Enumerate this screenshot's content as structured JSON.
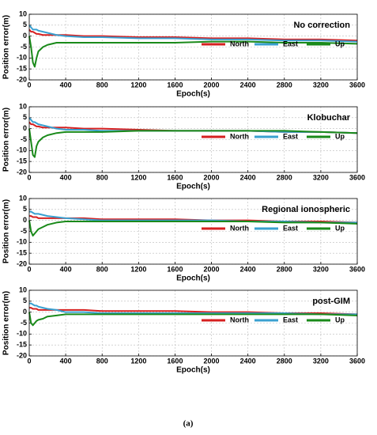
{
  "chart_data": [
    {
      "type": "line",
      "title": "No correction",
      "xlabel": "Epoch(s)",
      "ylabel": "Position error(m)",
      "x": [
        0,
        20,
        40,
        60,
        80,
        100,
        150,
        200,
        300,
        400,
        600,
        800,
        1200,
        1600,
        2000,
        2400,
        2800,
        3200,
        3600
      ],
      "series": [
        {
          "name": "North",
          "color": "#d62020",
          "values": [
            3,
            2,
            2,
            1.5,
            1,
            1,
            0.5,
            0.5,
            0.5,
            0.5,
            0,
            0,
            -0.5,
            -0.5,
            -1,
            -1,
            -1.5,
            -1.5,
            -2
          ]
        },
        {
          "name": "East",
          "color": "#3aa0d0",
          "values": [
            5,
            4,
            3,
            3,
            3,
            2.5,
            2,
            1.5,
            0.5,
            0,
            -0.5,
            -0.5,
            -1,
            -1,
            -1.5,
            -1.5,
            -2,
            -2,
            -2.5
          ]
        },
        {
          "name": "Up",
          "color": "#1a8a1a",
          "values": [
            0,
            -5,
            -12,
            -14,
            -10,
            -7,
            -5,
            -4,
            -3,
            -3,
            -3,
            -3,
            -3,
            -3,
            -2.5,
            -2.5,
            -3,
            -3,
            -3.5
          ]
        }
      ],
      "xlim": [
        0,
        3600
      ],
      "xticks": [
        0,
        400,
        800,
        1200,
        1600,
        2000,
        2400,
        2800,
        3200,
        3600
      ],
      "ylim": [
        -20,
        10
      ],
      "yticks": [
        10,
        5,
        0,
        -5,
        -10,
        -15,
        -20
      ],
      "grid": true,
      "legend": "right"
    },
    {
      "type": "line",
      "title": "Klobuchar",
      "xlabel": "Epoch(s)",
      "ylabel": "Position error(m)",
      "x": [
        0,
        20,
        40,
        60,
        80,
        100,
        150,
        200,
        300,
        400,
        600,
        800,
        1200,
        1600,
        2000,
        2400,
        2800,
        3200,
        3600
      ],
      "series": [
        {
          "name": "North",
          "color": "#d62020",
          "values": [
            3,
            2,
            2,
            1.5,
            1,
            1,
            0.5,
            0.5,
            0.5,
            0.5,
            0,
            0,
            -0.5,
            -1,
            -1,
            -1,
            -1.5,
            -1.5,
            -2
          ]
        },
        {
          "name": "East",
          "color": "#3aa0d0",
          "values": [
            5,
            4,
            3,
            3,
            2.5,
            2,
            1.5,
            1,
            0,
            -0.5,
            -0.5,
            -1,
            -1,
            -1,
            -1,
            -1,
            -1.5,
            -1.5,
            -2
          ]
        },
        {
          "name": "Up",
          "color": "#1a8a1a",
          "values": [
            0,
            -6,
            -12,
            -13,
            -8,
            -6,
            -4,
            -3,
            -2,
            -1.5,
            -1.5,
            -1.5,
            -1,
            -1,
            -1,
            -1,
            -1,
            -1.5,
            -2
          ]
        }
      ],
      "xlim": [
        0,
        3600
      ],
      "xticks": [
        0,
        400,
        800,
        1200,
        1600,
        2000,
        2400,
        2800,
        3200,
        3600
      ],
      "ylim": [
        -20,
        10
      ],
      "yticks": [
        10,
        5,
        0,
        -5,
        -10,
        -15,
        -20
      ],
      "grid": true,
      "legend": "right"
    },
    {
      "type": "line",
      "title": "Regional ionospheric",
      "xlabel": "Epoch(s)",
      "ylabel": "Position error(m)",
      "x": [
        0,
        20,
        40,
        60,
        80,
        100,
        150,
        200,
        300,
        400,
        600,
        800,
        1200,
        1600,
        2000,
        2400,
        2800,
        3200,
        3600
      ],
      "series": [
        {
          "name": "North",
          "color": "#d62020",
          "values": [
            2,
            2,
            1.5,
            1.5,
            1.5,
            1,
            1,
            1,
            1,
            1,
            1,
            0.5,
            0.5,
            0.5,
            0,
            0,
            -0.5,
            -0.5,
            -1
          ]
        },
        {
          "name": "East",
          "color": "#3aa0d0",
          "values": [
            4,
            4,
            3.5,
            3,
            3,
            3,
            2.5,
            2,
            1.5,
            1,
            0.5,
            0,
            0,
            0,
            0,
            -0.5,
            -0.5,
            -1,
            -1
          ]
        },
        {
          "name": "Up",
          "color": "#1a8a1a",
          "values": [
            0,
            -5,
            -7,
            -6,
            -5,
            -4,
            -3,
            -2,
            -1,
            -0.5,
            -0.5,
            -0.5,
            -0.5,
            -0.5,
            -0.5,
            -0.5,
            -1,
            -1,
            -1.5
          ]
        }
      ],
      "xlim": [
        0,
        3600
      ],
      "xticks": [
        0,
        400,
        800,
        1200,
        1600,
        2000,
        2400,
        2800,
        3200,
        3600
      ],
      "ylim": [
        -20,
        10
      ],
      "yticks": [
        10,
        5,
        0,
        -5,
        -10,
        -15,
        -20
      ],
      "grid": true,
      "legend": "right"
    },
    {
      "type": "line",
      "title": "post-GIM",
      "xlabel": "Epoch(s)",
      "ylabel": "Position error(m)",
      "x": [
        0,
        20,
        40,
        60,
        80,
        100,
        150,
        200,
        300,
        400,
        600,
        800,
        1200,
        1600,
        2000,
        2400,
        2800,
        3200,
        3600
      ],
      "series": [
        {
          "name": "North",
          "color": "#d62020",
          "values": [
            2,
            2,
            1.5,
            1.5,
            1.5,
            1,
            1,
            1,
            1,
            1,
            1,
            0.5,
            0.5,
            0.5,
            0,
            0,
            -0.5,
            -0.5,
            -1
          ]
        },
        {
          "name": "East",
          "color": "#3aa0d0",
          "values": [
            4,
            4,
            3.5,
            3,
            3,
            2.5,
            2,
            1.5,
            1,
            0,
            0,
            -0.5,
            -0.5,
            -0.5,
            -0.5,
            -0.5,
            -0.5,
            -1,
            -1
          ]
        },
        {
          "name": "Up",
          "color": "#1a8a1a",
          "values": [
            0,
            -5,
            -6,
            -5,
            -4,
            -3.5,
            -3,
            -2,
            -1.5,
            -1,
            -1,
            -1,
            -1,
            -1,
            -1,
            -1,
            -1,
            -1,
            -1.5
          ]
        }
      ],
      "xlim": [
        0,
        3600
      ],
      "xticks": [
        0,
        400,
        800,
        1200,
        1600,
        2000,
        2400,
        2800,
        3200,
        3600
      ],
      "ylim": [
        -20,
        10
      ],
      "yticks": [
        10,
        5,
        0,
        -5,
        -10,
        -15,
        -20
      ],
      "grid": true,
      "legend": "right"
    }
  ],
  "caption": "(a)"
}
